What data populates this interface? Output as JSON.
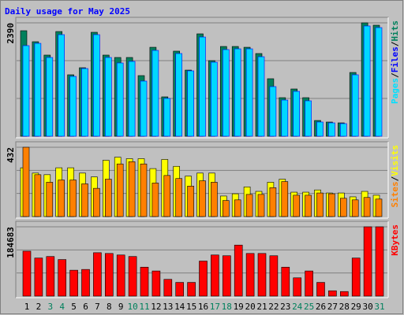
{
  "chart_data": [
    {
      "type": "bar",
      "title": "Daily usage for May 2025",
      "title_color": "#0000ff",
      "ylim": [
        0,
        2390
      ],
      "yticks": [
        2390
      ],
      "legend_labels": [
        "Pages",
        "/",
        "Files",
        "/",
        "Hits"
      ],
      "legend_colors": [
        "#00e0ff",
        "#000000",
        "#0000ff",
        "#000000",
        "#00805c"
      ],
      "series": [
        {
          "name": "Hits",
          "color": "#00805c",
          "values": [
            2224,
            1992,
            1710,
            2207,
            1295,
            1444,
            2191,
            1710,
            1660,
            1660,
            1278,
            1875,
            830,
            1793,
            1394,
            2158,
            1593,
            1892,
            1892,
            1875,
            1743,
            1212,
            813,
            996,
            813,
            332,
            299,
            282,
            1344,
            2390,
            2340
          ]
        },
        {
          "name": "Files",
          "color": "#00d8ff",
          "values": [
            1909,
            1958,
            1660,
            2141,
            1261,
            1427,
            2141,
            1660,
            1544,
            1577,
            1162,
            1809,
            797,
            1743,
            1378,
            2091,
            1560,
            1826,
            1842,
            1842,
            1676,
            1046,
            763,
            946,
            747,
            299,
            282,
            266,
            1295,
            2324,
            2290
          ]
        }
      ]
    },
    {
      "type": "bar",
      "ylim": [
        0,
        432
      ],
      "yticks": [
        432
      ],
      "legend_labels": [
        "Sites",
        "/",
        "Visits"
      ],
      "legend_colors": [
        "#ff8000",
        "#000000",
        "#ffff00"
      ],
      "series": [
        {
          "name": "Visits",
          "color": "#ffff00",
          "values": [
            304,
            271,
            261,
            304,
            304,
            271,
            247,
            351,
            370,
            361,
            361,
            299,
            356,
            313,
            252,
            271,
            271,
            128,
            142,
            185,
            157,
            214,
            233,
            152,
            152,
            166,
            147,
            147,
            123,
            157,
            133
          ]
        },
        {
          "name": "Sites",
          "color": "#ff8000",
          "values": [
            432,
            261,
            214,
            228,
            228,
            204,
            176,
            233,
            328,
            342,
            328,
            209,
            256,
            237,
            190,
            223,
            214,
            100,
            104,
            138,
            138,
            180,
            218,
            133,
            133,
            147,
            142,
            114,
            104,
            119,
            109
          ]
        }
      ]
    },
    {
      "type": "bar",
      "ylim": [
        0,
        184683
      ],
      "yticks": [
        184683
      ],
      "legend_labels": [
        "KBytes"
      ],
      "legend_colors": [
        "#ff0000"
      ],
      "categories": [
        "1",
        "2",
        "3",
        "4",
        "5",
        "6",
        "7",
        "8",
        "9",
        "10",
        "11",
        "12",
        "13",
        "14",
        "15",
        "16",
        "17",
        "18",
        "19",
        "20",
        "21",
        "22",
        "23",
        "24",
        "25",
        "26",
        "27",
        "28",
        "29",
        "30",
        "31"
      ],
      "category_colors": [
        "#000000",
        "#000000",
        "#00805c",
        "#00805c",
        "#000000",
        "#000000",
        "#000000",
        "#000000",
        "#000000",
        "#00805c",
        "#00805c",
        "#000000",
        "#000000",
        "#000000",
        "#000000",
        "#000000",
        "#00805c",
        "#00805c",
        "#000000",
        "#000000",
        "#000000",
        "#000000",
        "#000000",
        "#00805c",
        "#00805c",
        "#000000",
        "#000000",
        "#000000",
        "#000000",
        "#000000",
        "#00805c"
      ],
      "series": [
        {
          "name": "KBytes",
          "color": "#ff0000",
          "values": [
            119741,
            101475,
            105534,
            97416,
            69003,
            71033,
            115682,
            113652,
            109593,
            105534,
            77121,
            66974,
            44649,
            36531,
            36531,
            93357,
            109593,
            107564,
            135977,
            113652,
            113652,
            107564,
            77121,
            48708,
            66974,
            36531,
            14207,
            12177,
            101475,
            184683,
            184683
          ]
        }
      ]
    }
  ]
}
